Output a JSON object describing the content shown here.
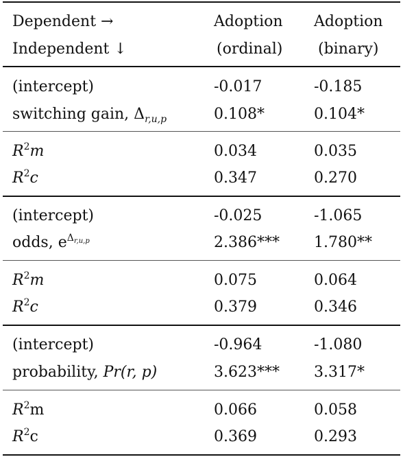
{
  "table": {
    "header": {
      "stub_top": "Dependent →",
      "stub_bottom": "Independent ↓",
      "col1_top": "Adoption",
      "col1_bottom": "(ordinal)",
      "col2_top": "Adoption",
      "col2_bottom": "(binary)"
    },
    "rows": [
      {
        "label": "(intercept)",
        "ordinal": "-0.017",
        "binary": "-0.185"
      },
      {
        "label": "switching gain, Δ",
        "label_sub": "r,u,p",
        "ordinal": "0.108*",
        "binary": "0.104*"
      },
      {
        "label": "R",
        "label_sup": "2",
        "label_tail": "m",
        "ordinal": "0.034",
        "binary": "0.035"
      },
      {
        "label": "R",
        "label_sup": "2",
        "label_tail": "c",
        "ordinal": "0.347",
        "binary": "0.270"
      },
      {
        "label": "(intercept)",
        "ordinal": "-0.025",
        "binary": "-1.065"
      },
      {
        "label": "odds, e",
        "label_sup": "Δ",
        "label_sup_sub": "r,u,p",
        "ordinal": "2.386***",
        "binary": "1.780**"
      },
      {
        "label": "R",
        "label_sup": "2",
        "label_tail": "m",
        "ordinal": "0.075",
        "binary": "0.064"
      },
      {
        "label": "R",
        "label_sup": "2",
        "label_tail": "c",
        "ordinal": "0.379",
        "binary": "0.346"
      },
      {
        "label": "(intercept)",
        "ordinal": "-0.964",
        "binary": "-1.080"
      },
      {
        "label": "probability, ",
        "label_math": "Pr(r, p)",
        "ordinal": "3.623***",
        "binary": "3.317*"
      },
      {
        "label": "R",
        "label_sup": "2",
        "label_tail": "m",
        "ordinal": "0.066",
        "binary": "0.058"
      },
      {
        "label": "R",
        "label_sup": "2",
        "label_tail": "c",
        "ordinal": "0.369",
        "binary": "0.293"
      }
    ]
  }
}
